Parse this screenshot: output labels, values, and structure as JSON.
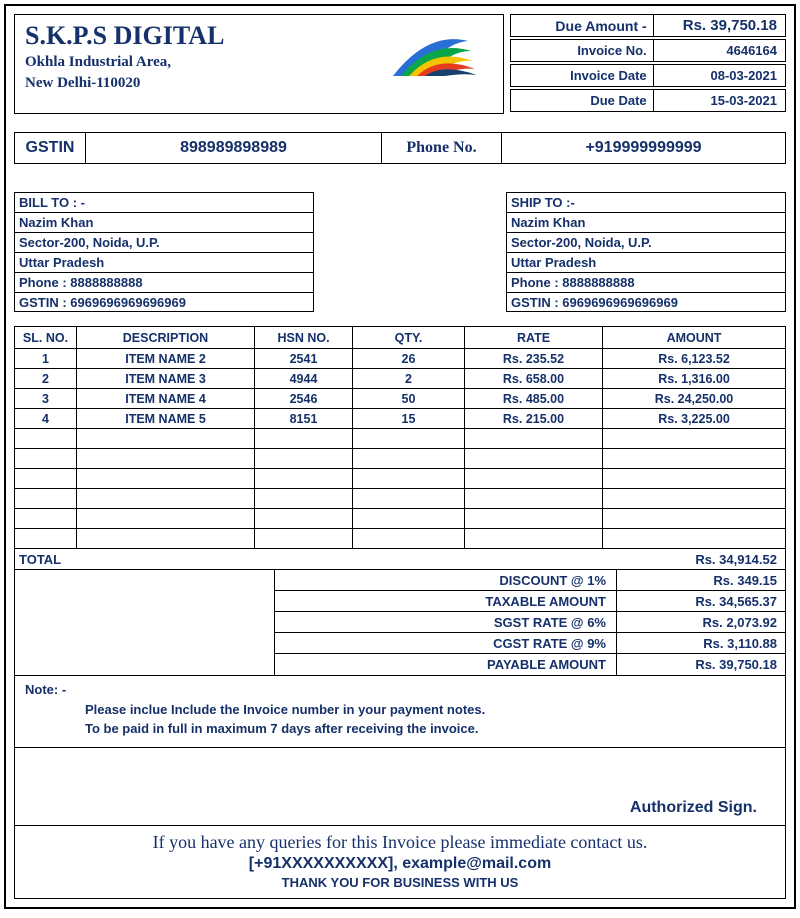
{
  "company": {
    "name": "S.K.P.S DIGITAL",
    "addr1": "Okhla Industrial Area,",
    "addr2": "New Delhi-110020"
  },
  "header": {
    "due_amount_label": "Due Amount -",
    "due_amount": "Rs. 39,750.18",
    "invoice_no_label": "Invoice No.",
    "invoice_no": "4646164",
    "invoice_date_label": "Invoice Date",
    "invoice_date": "08-03-2021",
    "due_date_label": "Due Date",
    "due_date": "15-03-2021"
  },
  "gstin_bar": {
    "gstin_label": "GSTIN",
    "gstin": "898989898989",
    "phone_label": "Phone No.",
    "phone": "+919999999999"
  },
  "bill_to": {
    "title": "BILL TO : -",
    "name": "Nazim Khan",
    "addr": "Sector-200, Noida, U.P.",
    "state": "Uttar Pradesh",
    "phone": "Phone : 8888888888",
    "gstin": "GSTIN : 6969696969696969"
  },
  "ship_to": {
    "title": "SHIP TO  :-",
    "name": "Nazim Khan",
    "addr": "Sector-200, Noida, U.P.",
    "state": "Uttar Pradesh",
    "phone": "Phone : 8888888888",
    "gstin": "GSTIN : 6969696969696969"
  },
  "items_table": {
    "columns": [
      "SL. NO.",
      "DESCRIPTION",
      "HSN NO.",
      "QTY.",
      "RATE",
      "AMOUNT"
    ],
    "rows": [
      [
        "1",
        "ITEM NAME 2",
        "2541",
        "26",
        "Rs. 235.52",
        "Rs. 6,123.52"
      ],
      [
        "2",
        "ITEM NAME 3",
        "4944",
        "2",
        "Rs. 658.00",
        "Rs. 1,316.00"
      ],
      [
        "3",
        "ITEM NAME 4",
        "2546",
        "50",
        "Rs. 485.00",
        "Rs. 24,250.00"
      ],
      [
        "4",
        "ITEM NAME 5",
        "8151",
        "15",
        "Rs. 215.00",
        "Rs. 3,225.00"
      ]
    ],
    "blank_rows": 6
  },
  "totals": {
    "total_label": "TOTAL",
    "total": "Rs. 34,914.52",
    "lines": [
      {
        "label": "DISCOUNT @ 1%",
        "value": "Rs. 349.15"
      },
      {
        "label": "TAXABLE AMOUNT",
        "value": "Rs. 34,565.37"
      },
      {
        "label": "SGST RATE @  6%",
        "value": "Rs. 2,073.92"
      },
      {
        "label": "CGST RATE @ 9%",
        "value": "Rs. 3,110.88"
      },
      {
        "label": "PAYABLE AMOUNT",
        "value": "Rs. 39,750.18"
      }
    ]
  },
  "note": {
    "title": "Note: -",
    "line1": "Please inclue Include the Invoice number in your payment notes.",
    "line2": "To be paid in full in maximum 7 days after receiving the invoice."
  },
  "signature_label": "Authorized Sign.",
  "footer": {
    "line1": "If you have any queries for this Invoice  please immediate contact us.",
    "line2": "[+91XXXXXXXXXX], example@mail.com",
    "line3": "THANK YOU FOR BUSINESS WITH US"
  },
  "colors": {
    "text": "#15306a",
    "border": "#000000",
    "logo_colors": [
      "#2a6fd6",
      "#0aa64a",
      "#f5c400",
      "#e63b1f",
      "#17406f"
    ]
  }
}
